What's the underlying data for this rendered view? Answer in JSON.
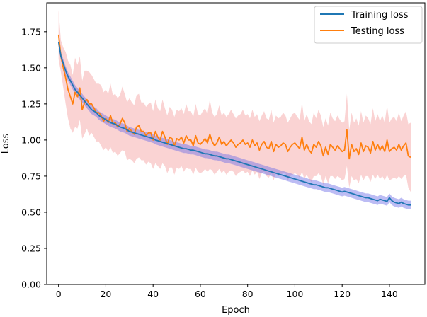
{
  "chart_data": {
    "type": "line",
    "title": "",
    "xlabel": "Epoch",
    "ylabel": "Loss",
    "xlim": [
      -5,
      155
    ],
    "ylim": [
      0.0,
      1.95
    ],
    "xticks": [
      0,
      20,
      40,
      60,
      80,
      100,
      120,
      140
    ],
    "yticks": [
      0.0,
      0.25,
      0.5,
      0.75,
      1.0,
      1.25,
      1.5,
      1.75
    ],
    "ytick_labels": [
      "0.00",
      "0.25",
      "0.50",
      "0.75",
      "1.00",
      "1.25",
      "1.50",
      "1.75"
    ],
    "grid": false,
    "legend_position": "top-right",
    "series": [
      {
        "name": "Training loss",
        "color": "#1f77b4",
        "band_color": "#6a6ae6",
        "x_start": 0,
        "x_step": 1,
        "mean": [
          1.68,
          1.58,
          1.53,
          1.48,
          1.44,
          1.41,
          1.38,
          1.35,
          1.33,
          1.31,
          1.29,
          1.27,
          1.25,
          1.23,
          1.21,
          1.2,
          1.19,
          1.17,
          1.16,
          1.15,
          1.14,
          1.13,
          1.12,
          1.115,
          1.11,
          1.1,
          1.09,
          1.085,
          1.08,
          1.07,
          1.06,
          1.055,
          1.05,
          1.045,
          1.04,
          1.035,
          1.03,
          1.025,
          1.02,
          1.015,
          1.01,
          1.0,
          0.995,
          0.99,
          0.985,
          0.98,
          0.975,
          0.97,
          0.965,
          0.96,
          0.955,
          0.95,
          0.945,
          0.94,
          0.94,
          0.935,
          0.93,
          0.93,
          0.925,
          0.92,
          0.915,
          0.91,
          0.905,
          0.905,
          0.9,
          0.895,
          0.89,
          0.89,
          0.885,
          0.88,
          0.875,
          0.87,
          0.87,
          0.865,
          0.86,
          0.855,
          0.85,
          0.845,
          0.84,
          0.835,
          0.83,
          0.825,
          0.82,
          0.815,
          0.81,
          0.805,
          0.8,
          0.795,
          0.79,
          0.785,
          0.78,
          0.775,
          0.77,
          0.765,
          0.76,
          0.755,
          0.75,
          0.745,
          0.74,
          0.735,
          0.73,
          0.725,
          0.72,
          0.715,
          0.71,
          0.705,
          0.7,
          0.695,
          0.69,
          0.69,
          0.685,
          0.68,
          0.675,
          0.67,
          0.67,
          0.665,
          0.66,
          0.655,
          0.65,
          0.645,
          0.64,
          0.645,
          0.64,
          0.635,
          0.63,
          0.625,
          0.62,
          0.615,
          0.61,
          0.605,
          0.6,
          0.6,
          0.595,
          0.59,
          0.585,
          0.58,
          0.59,
          0.585,
          0.58,
          0.575,
          0.6,
          0.58,
          0.57,
          0.565,
          0.56,
          0.57,
          0.56,
          0.555,
          0.55,
          0.55
        ],
        "band": [
          0.03,
          0.03,
          0.03,
          0.03,
          0.03,
          0.03,
          0.03,
          0.03,
          0.03,
          0.03,
          0.03,
          0.03,
          0.03,
          0.03,
          0.03,
          0.03,
          0.03,
          0.03,
          0.03,
          0.03,
          0.03,
          0.03,
          0.03,
          0.03,
          0.03,
          0.03,
          0.03,
          0.03,
          0.03,
          0.03,
          0.03,
          0.03,
          0.03,
          0.03,
          0.03,
          0.03,
          0.03,
          0.03,
          0.03,
          0.03,
          0.03,
          0.03,
          0.03,
          0.03,
          0.03,
          0.03,
          0.03,
          0.03,
          0.03,
          0.03,
          0.03,
          0.03,
          0.03,
          0.03,
          0.03,
          0.03,
          0.03,
          0.03,
          0.03,
          0.03,
          0.03,
          0.03,
          0.03,
          0.03,
          0.03,
          0.03,
          0.03,
          0.03,
          0.03,
          0.03,
          0.03,
          0.03,
          0.03,
          0.03,
          0.03,
          0.03,
          0.03,
          0.03,
          0.03,
          0.03,
          0.03,
          0.03,
          0.03,
          0.03,
          0.03,
          0.03,
          0.03,
          0.03,
          0.03,
          0.03,
          0.03,
          0.03,
          0.03,
          0.03,
          0.03,
          0.03,
          0.03,
          0.03,
          0.03,
          0.03,
          0.03,
          0.03,
          0.03,
          0.03,
          0.03,
          0.03,
          0.03,
          0.03,
          0.03,
          0.03,
          0.03,
          0.03,
          0.03,
          0.03,
          0.03,
          0.03,
          0.03,
          0.03,
          0.03,
          0.03,
          0.03,
          0.03,
          0.03,
          0.03,
          0.03,
          0.03,
          0.03,
          0.03,
          0.03,
          0.03,
          0.03,
          0.03,
          0.03,
          0.03,
          0.03,
          0.03,
          0.03,
          0.03,
          0.03,
          0.03,
          0.03,
          0.03,
          0.03,
          0.03,
          0.03,
          0.03,
          0.03,
          0.03,
          0.03,
          0.03
        ]
      },
      {
        "name": "Testing loss",
        "color": "#ff7f0e",
        "band_color": "#f08080",
        "x_start": 0,
        "x_step": 1,
        "mean": [
          1.73,
          1.58,
          1.5,
          1.43,
          1.35,
          1.3,
          1.25,
          1.33,
          1.3,
          1.36,
          1.21,
          1.26,
          1.28,
          1.25,
          1.25,
          1.22,
          1.19,
          1.19,
          1.17,
          1.13,
          1.15,
          1.12,
          1.17,
          1.11,
          1.12,
          1.09,
          1.11,
          1.15,
          1.12,
          1.06,
          1.08,
          1.06,
          1.04,
          1.09,
          1.1,
          1.06,
          1.06,
          1.03,
          1.05,
          1.05,
          1.0,
          1.06,
          1.02,
          1.0,
          1.06,
          1.02,
          0.97,
          1.02,
          1.01,
          0.96,
          1.01,
          1.0,
          1.02,
          0.98,
          1.03,
          1.0,
          1.0,
          0.96,
          1.03,
          0.98,
          0.97,
          0.99,
          1.01,
          0.98,
          1.04,
          0.99,
          0.96,
          0.98,
          1.02,
          0.97,
          0.99,
          0.96,
          0.98,
          1.0,
          0.98,
          0.95,
          0.97,
          0.98,
          1.0,
          0.97,
          0.98,
          0.95,
          1.0,
          0.96,
          0.98,
          0.93,
          0.97,
          0.99,
          0.95,
          0.94,
          0.99,
          0.92,
          0.97,
          0.95,
          0.96,
          0.98,
          0.97,
          0.92,
          0.95,
          0.97,
          0.98,
          0.96,
          0.94,
          1.02,
          0.93,
          0.97,
          0.93,
          0.91,
          0.97,
          0.95,
          0.99,
          0.96,
          0.89,
          0.95,
          0.9,
          0.97,
          0.95,
          0.93,
          0.96,
          0.94,
          0.92,
          0.93,
          1.07,
          0.87,
          0.97,
          0.92,
          0.94,
          0.9,
          0.98,
          0.92,
          0.96,
          0.95,
          0.91,
          0.99,
          0.93,
          0.97,
          0.93,
          0.96,
          0.92,
          1.0,
          0.92,
          0.94,
          0.95,
          0.93,
          0.97,
          0.93,
          0.96,
          0.98,
          0.89,
          0.88
        ],
        "band": [
          0.17,
          0.11,
          0.14,
          0.18,
          0.2,
          0.22,
          0.2,
          0.24,
          0.22,
          0.22,
          0.2,
          0.22,
          0.2,
          0.22,
          0.2,
          0.2,
          0.2,
          0.2,
          0.21,
          0.2,
          0.2,
          0.2,
          0.22,
          0.2,
          0.2,
          0.2,
          0.2,
          0.22,
          0.2,
          0.2,
          0.21,
          0.2,
          0.2,
          0.22,
          0.22,
          0.2,
          0.2,
          0.2,
          0.2,
          0.21,
          0.2,
          0.22,
          0.2,
          0.2,
          0.22,
          0.2,
          0.2,
          0.21,
          0.2,
          0.2,
          0.2,
          0.2,
          0.2,
          0.2,
          0.22,
          0.2,
          0.2,
          0.2,
          0.22,
          0.2,
          0.2,
          0.21,
          0.21,
          0.2,
          0.24,
          0.2,
          0.2,
          0.2,
          0.22,
          0.2,
          0.2,
          0.2,
          0.2,
          0.21,
          0.2,
          0.2,
          0.2,
          0.2,
          0.21,
          0.2,
          0.2,
          0.2,
          0.21,
          0.2,
          0.2,
          0.2,
          0.2,
          0.21,
          0.2,
          0.2,
          0.22,
          0.2,
          0.2,
          0.2,
          0.2,
          0.21,
          0.2,
          0.2,
          0.2,
          0.21,
          0.21,
          0.2,
          0.2,
          0.24,
          0.2,
          0.21,
          0.2,
          0.2,
          0.22,
          0.2,
          0.22,
          0.21,
          0.2,
          0.2,
          0.2,
          0.22,
          0.2,
          0.2,
          0.21,
          0.2,
          0.2,
          0.2,
          0.25,
          0.2,
          0.22,
          0.2,
          0.21,
          0.2,
          0.22,
          0.2,
          0.21,
          0.2,
          0.2,
          0.23,
          0.2,
          0.21,
          0.2,
          0.21,
          0.2,
          0.24,
          0.2,
          0.21,
          0.21,
          0.2,
          0.22,
          0.2,
          0.21,
          0.22,
          0.22,
          0.24
        ]
      }
    ]
  }
}
